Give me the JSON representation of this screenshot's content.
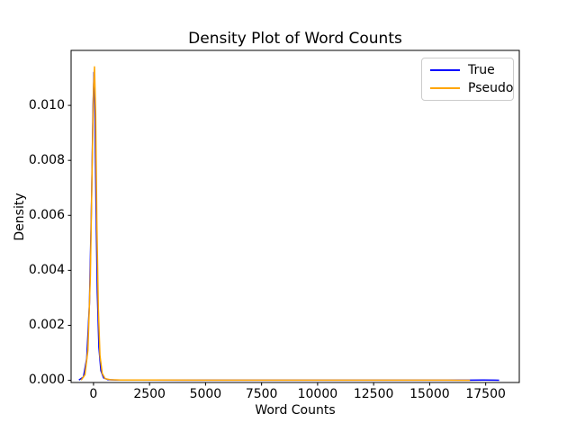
{
  "figure": {
    "background": "#ffffff",
    "title": "Density Plot of Word Counts",
    "xlabel": "Word Counts",
    "ylabel": "Density"
  },
  "legend": {
    "position": "upper right",
    "border_color": "#cccccc",
    "items": [
      {
        "label": "True",
        "color": "#0000ff"
      },
      {
        "label": "Pseudo",
        "color": "#ffa500"
      }
    ]
  },
  "chart_data": {
    "type": "line",
    "title": "Density Plot of Word Counts",
    "xlabel": "Word Counts",
    "ylabel": "Density",
    "xlim": [
      -1000,
      19000
    ],
    "ylim": [
      -8e-05,
      0.012
    ],
    "x_ticks": [
      0,
      2500,
      5000,
      7500,
      10000,
      12500,
      15000,
      17500
    ],
    "x_tick_labels": [
      "0",
      "2500",
      "5000",
      "7500",
      "10000",
      "12500",
      "15000",
      "17500"
    ],
    "y_ticks": [
      0.0,
      0.002,
      0.004,
      0.006,
      0.008,
      0.01
    ],
    "y_tick_labels": [
      "0.000",
      "0.002",
      "0.004",
      "0.006",
      "0.008",
      "0.010"
    ],
    "grid": false,
    "legend_position": "upper right",
    "series": [
      {
        "name": "True",
        "color": "#0000ff",
        "peak": {
          "x": 20,
          "y": 0.0112
        },
        "points": [
          [
            -650,
            1e-05
          ],
          [
            -450,
            0.00012
          ],
          [
            -300,
            0.0008
          ],
          [
            -180,
            0.0028
          ],
          [
            -90,
            0.0065
          ],
          [
            -20,
            0.01
          ],
          [
            20,
            0.0112
          ],
          [
            60,
            0.01
          ],
          [
            110,
            0.0066
          ],
          [
            170,
            0.0032
          ],
          [
            240,
            0.0012
          ],
          [
            330,
            0.00035
          ],
          [
            450,
            9e-05
          ],
          [
            650,
            2e-05
          ],
          [
            1000,
            1e-05
          ],
          [
            2000,
            7e-06
          ],
          [
            4000,
            5e-06
          ],
          [
            7000,
            4e-06
          ],
          [
            10000,
            4e-06
          ],
          [
            13000,
            4e-06
          ],
          [
            15500,
            4e-06
          ],
          [
            16800,
            5e-06
          ],
          [
            17400,
            7e-06
          ],
          [
            17900,
            6e-06
          ],
          [
            18100,
            3e-06
          ]
        ]
      },
      {
        "name": "Pseudo",
        "color": "#ffa500",
        "peak": {
          "x": 45,
          "y": 0.0114
        },
        "points": [
          [
            -550,
            1e-05
          ],
          [
            -380,
            0.0002
          ],
          [
            -250,
            0.0011
          ],
          [
            -140,
            0.0038
          ],
          [
            -60,
            0.0078
          ],
          [
            0,
            0.0106
          ],
          [
            45,
            0.0114
          ],
          [
            95,
            0.0097
          ],
          [
            150,
            0.0058
          ],
          [
            215,
            0.0026
          ],
          [
            290,
            0.0009
          ],
          [
            390,
            0.00025
          ],
          [
            520,
            6e-05
          ],
          [
            750,
            2e-05
          ],
          [
            1200,
            1e-05
          ],
          [
            2500,
            7e-06
          ],
          [
            5000,
            5e-06
          ],
          [
            8000,
            4e-06
          ],
          [
            11000,
            4e-06
          ],
          [
            14000,
            4e-06
          ],
          [
            15800,
            4e-06
          ],
          [
            16500,
            3e-06
          ],
          [
            16800,
            2e-06
          ]
        ]
      }
    ]
  }
}
